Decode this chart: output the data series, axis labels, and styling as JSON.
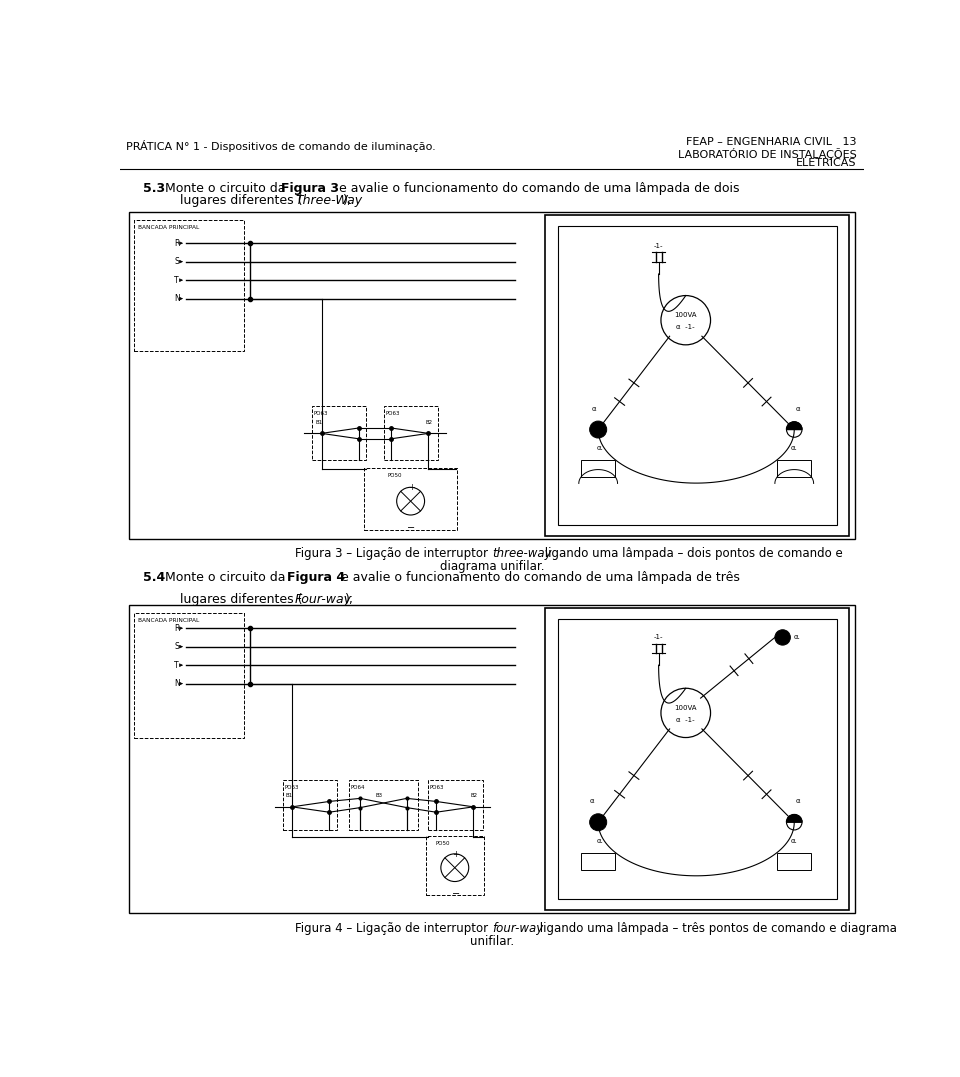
{
  "bg_color": "#ffffff",
  "lc": "#000000",
  "header_left": "PRÁTICA N° 1 - Dispositivos de comando de iluminação.",
  "header_right1": "FEAP – ENGENHARIA CIVIL   13",
  "header_right2": "LABORATÓRIO DE INSTALAÇÕES",
  "header_right3": "ELETRICAS"
}
